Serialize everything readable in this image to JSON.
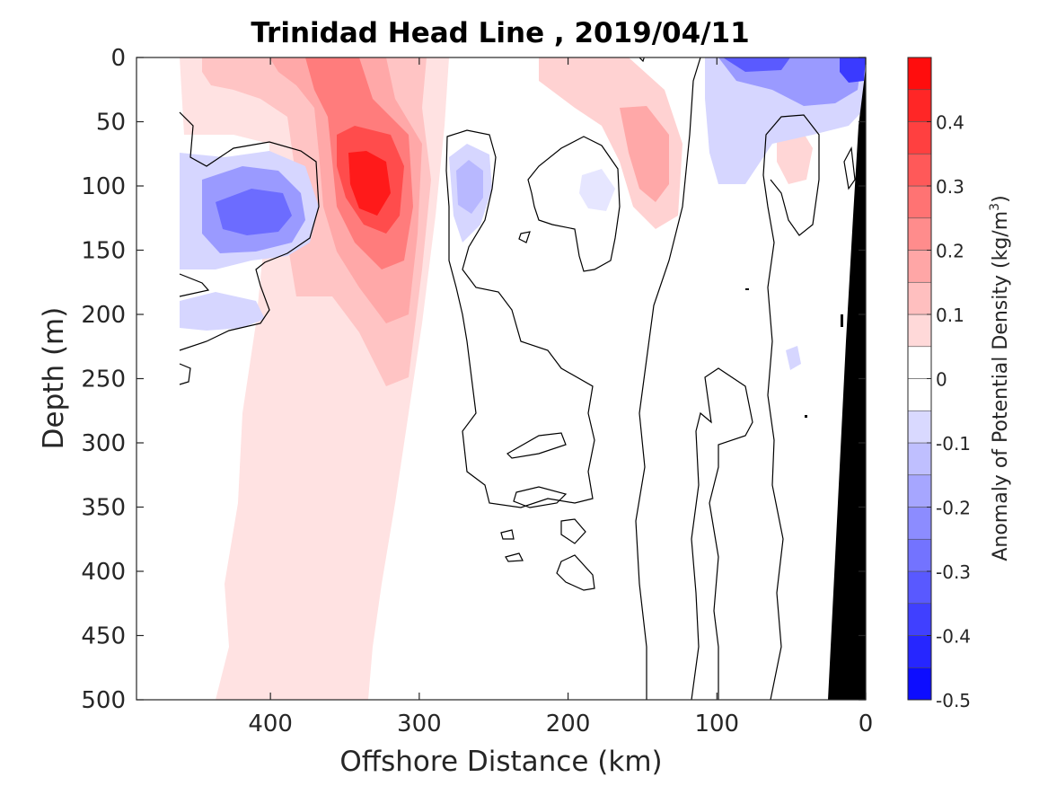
{
  "chart_data": {
    "type": "heatmap",
    "subtype": "filled-contour section",
    "title": "Trinidad Head Line , 2019/04/11",
    "xlabel": "Offshore Distance (km)",
    "ylabel": "Depth (m)",
    "xlim": [
      490,
      0
    ],
    "x_reversed": true,
    "ylim": [
      0,
      500
    ],
    "y_reversed": true,
    "xticks": [
      400,
      300,
      200,
      100,
      0
    ],
    "yticks": [
      0,
      50,
      100,
      150,
      200,
      250,
      300,
      350,
      400,
      450,
      500
    ],
    "grid": false,
    "colorbar": {
      "label": "Anomaly of Potential Density (kg/m",
      "label_superscript": "3",
      "label_close": ")",
      "range": [
        -0.5,
        0.5
      ],
      "level_step": 0.05,
      "ticks": [
        "0.4",
        "0.3",
        "0.2",
        "0.1",
        "0",
        "-0.1",
        "-0.2",
        "-0.3",
        "-0.4",
        "-0.5"
      ],
      "tick_values": [
        0.4,
        0.3,
        0.2,
        0.1,
        0,
        -0.1,
        -0.2,
        -0.3,
        -0.4,
        -0.5
      ],
      "negative_color": "#0000ff",
      "zero_color": "#ffffff",
      "positive_color": "#ff0000"
    },
    "features": [
      {
        "name": "positive anomaly core",
        "distance_km": 335,
        "depth_m": 95,
        "value": 0.4
      },
      {
        "name": "positive anomaly surface",
        "distance_km": 360,
        "depth_m": 20,
        "value": 0.25
      },
      {
        "name": "positive anomaly plume",
        "distance_km": 340,
        "depth_m": 400,
        "value": 0.05
      },
      {
        "name": "negative anomaly offshore",
        "distance_km": 415,
        "depth_m": 115,
        "value": -0.35
      },
      {
        "name": "negative anomaly offshore deep",
        "distance_km": 430,
        "depth_m": 200,
        "value": -0.15
      },
      {
        "name": "negative anomaly",
        "distance_km": 270,
        "depth_m": 100,
        "value": -0.15
      },
      {
        "name": "negative anomaly",
        "distance_km": 185,
        "depth_m": 105,
        "value": -0.08
      },
      {
        "name": "positive anomaly",
        "distance_km": 140,
        "depth_m": 85,
        "value": 0.2
      },
      {
        "name": "positive anomaly",
        "distance_km": 50,
        "depth_m": 80,
        "value": 0.08
      },
      {
        "name": "negative anomaly nearshore surface",
        "distance_km": 80,
        "depth_m": 10,
        "value": -0.4
      },
      {
        "name": "negative anomaly nearshore surface",
        "distance_km": 10,
        "depth_m": 5,
        "value": -0.45
      }
    ],
    "bathymetry_mask": {
      "color": "#000000",
      "top_distance_km": 0,
      "top_depth_m": 10,
      "bottom_distance_km": 28,
      "bottom_depth_m": 500
    }
  }
}
